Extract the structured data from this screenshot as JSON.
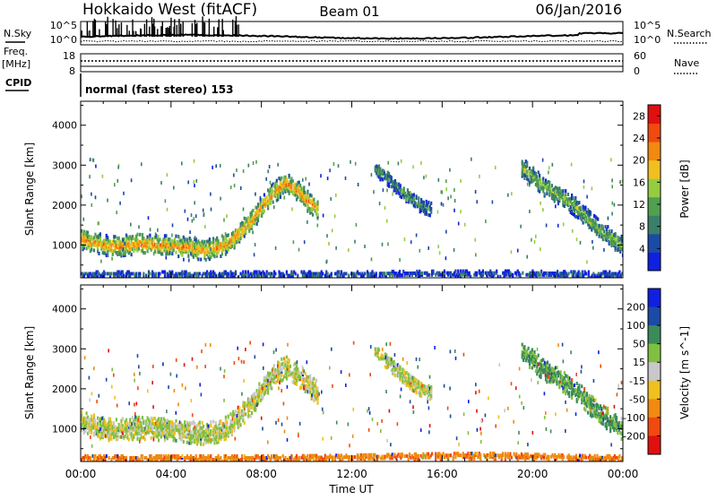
{
  "header": {
    "radar": "Hokkaido West (fitACF)",
    "beam": "Beam 01",
    "date": "06/Jan/2016"
  },
  "top_panel": {
    "nsky_label": "N.Sky",
    "nsearch_label": "N.Search",
    "log_top": "10^5",
    "log_bottom": "10^0",
    "freq_label_1": "Freq.",
    "freq_label_2": "[MHz]",
    "freq_ticks": [
      "18",
      "8"
    ],
    "nave_label": "Nave",
    "nave_ticks": [
      "60",
      "0"
    ],
    "cpid_label": "CPID",
    "cpid_text": "normal (fast stereo) 153"
  },
  "chart_data": [
    {
      "type": "heatmap",
      "parameter": "Power",
      "ylabel": "Slant Range [km]",
      "xlabel": "Time UT",
      "x_ticks": [
        "00:00",
        "04:00",
        "08:00",
        "12:00",
        "16:00",
        "20:00",
        "00:00"
      ],
      "xlim_hours": [
        0,
        24
      ],
      "ylim_km": [
        180,
        4600
      ],
      "y_ticks": [
        1000,
        2000,
        3000,
        4000
      ],
      "colorbar": {
        "label": "Power [dB]",
        "range": [
          0,
          30
        ],
        "ticks": [
          "4",
          "8",
          "12",
          "16",
          "20",
          "24",
          "28"
        ],
        "tick_values": [
          4,
          8,
          12,
          16,
          20,
          24,
          28
        ],
        "colors": [
          "#1020e0",
          "#1c4aa6",
          "#3b7f6a",
          "#50a050",
          "#96cc40",
          "#f0c020",
          "#f08a10",
          "#f04a10",
          "#e01010"
        ]
      },
      "bands": [
        {
          "name": "main echo",
          "x": [
            0,
            0.5,
            1,
            1.5,
            2,
            2.5,
            3,
            3.5,
            4,
            4.5,
            5,
            5.5,
            6,
            6.5,
            7,
            7.5,
            8,
            8.5,
            9,
            9.5,
            10,
            10.5
          ],
          "center_km": [
            1150,
            1080,
            1000,
            960,
            1000,
            1020,
            1000,
            980,
            990,
            950,
            900,
            880,
            930,
            1050,
            1300,
            1600,
            1950,
            2300,
            2550,
            2400,
            2100,
            1900
          ],
          "thickness_km": 500,
          "power": 22
        },
        {
          "name": "mid-day echo",
          "x": [
            13,
            13.5,
            14,
            14.5,
            15,
            15.5
          ],
          "center_km": [
            2900,
            2700,
            2450,
            2200,
            2000,
            1900
          ],
          "thickness_km": 350,
          "power": 10
        },
        {
          "name": "evening echo",
          "x": [
            19.5,
            20,
            20.5,
            21,
            21.5,
            22,
            22.5,
            23,
            23.5,
            24
          ],
          "center_km": [
            2950,
            2700,
            2450,
            2300,
            2100,
            1900,
            1600,
            1350,
            1150,
            950
          ],
          "thickness_km": 450,
          "power": 14
        },
        {
          "name": "near-range scatter",
          "x": [
            0,
            3,
            6,
            9,
            12,
            16,
            18,
            20,
            22,
            24
          ],
          "center_km": [
            260,
            260,
            260,
            260,
            260,
            280,
            280,
            280,
            260,
            260
          ],
          "thickness_km": 140,
          "power": 6
        }
      ]
    },
    {
      "type": "heatmap",
      "parameter": "Velocity",
      "ylabel": "Slant Range [km]",
      "xlabel": "Time UT",
      "x_ticks": [
        "00:00",
        "04:00",
        "08:00",
        "12:00",
        "16:00",
        "20:00",
        "00:00"
      ],
      "xlim_hours": [
        0,
        24
      ],
      "ylim_km": [
        180,
        4600
      ],
      "y_ticks": [
        1000,
        2000,
        3000,
        4000
      ],
      "colorbar": {
        "label": "Velocity [m s^-1]",
        "ticks": [
          "200",
          "100",
          "50",
          "15",
          "-15",
          "-50",
          "-100",
          "-200"
        ],
        "colors": [
          "#1020e0",
          "#1c4aa6",
          "#3a8a5a",
          "#80c040",
          "#c8c8c8",
          "#f0c020",
          "#f08a10",
          "#f04a10",
          "#e01010"
        ]
      },
      "bands": [
        {
          "name": "ground scatter",
          "x": [
            0,
            0.5,
            1,
            1.5,
            2,
            2.5,
            3,
            3.5,
            4,
            4.5,
            5,
            5.5,
            6,
            6.5,
            7,
            7.5,
            8,
            8.5,
            9,
            9.5,
            10,
            10.5
          ],
          "center_km": [
            1150,
            1080,
            1000,
            960,
            1000,
            1020,
            1000,
            980,
            990,
            950,
            900,
            880,
            930,
            1050,
            1300,
            1600,
            1950,
            2300,
            2550,
            2400,
            2100,
            1900
          ],
          "thickness_km": 550,
          "velocity": 0
        },
        {
          "name": "mid-day echo",
          "x": [
            13,
            13.5,
            14,
            14.5,
            15,
            15.5
          ],
          "center_km": [
            2900,
            2700,
            2450,
            2200,
            2000,
            1900
          ],
          "thickness_km": 350,
          "velocity": 0
        },
        {
          "name": "evening echo",
          "x": [
            19.5,
            20,
            20.5,
            21,
            21.5,
            22,
            22.5,
            23,
            23.5,
            24
          ],
          "center_km": [
            2950,
            2700,
            2450,
            2300,
            2100,
            1900,
            1600,
            1350,
            1150,
            950
          ],
          "thickness_km": 500,
          "velocity": 40
        },
        {
          "name": "near-range flow",
          "x": [
            0,
            3,
            6,
            9,
            12,
            14,
            16,
            18,
            20,
            22,
            24
          ],
          "center_km": [
            260,
            260,
            260,
            260,
            280,
            300,
            320,
            330,
            300,
            270,
            260
          ],
          "thickness_km": 160,
          "velocity": -60
        }
      ]
    }
  ]
}
